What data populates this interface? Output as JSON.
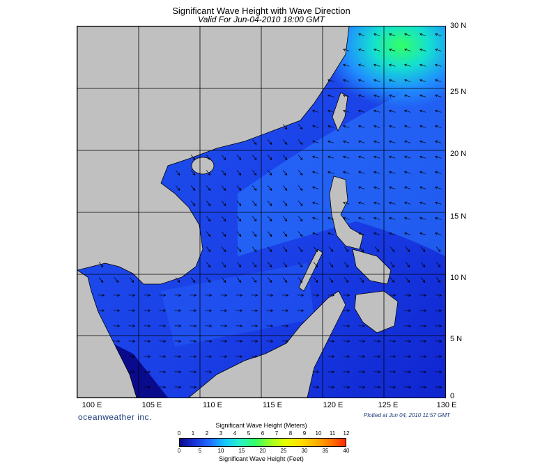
{
  "title": "Significant Wave Height with Wave Direction",
  "subtitle": "Valid For Jun-04-2010 18:00 GMT",
  "lat_labels": [
    "30 N",
    "25 N",
    "20 N",
    "15 N",
    "10 N",
    "5 N",
    "0"
  ],
  "lon_labels": [
    "100 E",
    "105 E",
    "110 E",
    "115 E",
    "120 E",
    "125 E",
    "130 E"
  ],
  "brand": "oceanweather inc.",
  "plotted": "Plotted at Jun 04, 2010 11:57 GMT",
  "legend": {
    "meters_title": "Significant Wave Height (Meters)",
    "feet_title": "Significant Wave Height (Feet)",
    "meters_ticks": [
      "0",
      "1",
      "2",
      "3",
      "4",
      "5",
      "6",
      "7",
      "8",
      "9",
      "10",
      "11",
      "12"
    ],
    "feet_ticks": [
      "0",
      "5",
      "10",
      "15",
      "20",
      "25",
      "30",
      "35",
      "40"
    ],
    "colors": [
      "#0a0a8c",
      "#1a33d8",
      "#1f6fff",
      "#14c8ff",
      "#2af2c8",
      "#33ff66",
      "#9aff22",
      "#e6ff00",
      "#ffe000",
      "#ffb400",
      "#ff7800",
      "#ff2a00"
    ]
  },
  "colors": {
    "land": "#c0c0c0",
    "low_wave": "#1f3fe0",
    "grid": "#000000"
  }
}
